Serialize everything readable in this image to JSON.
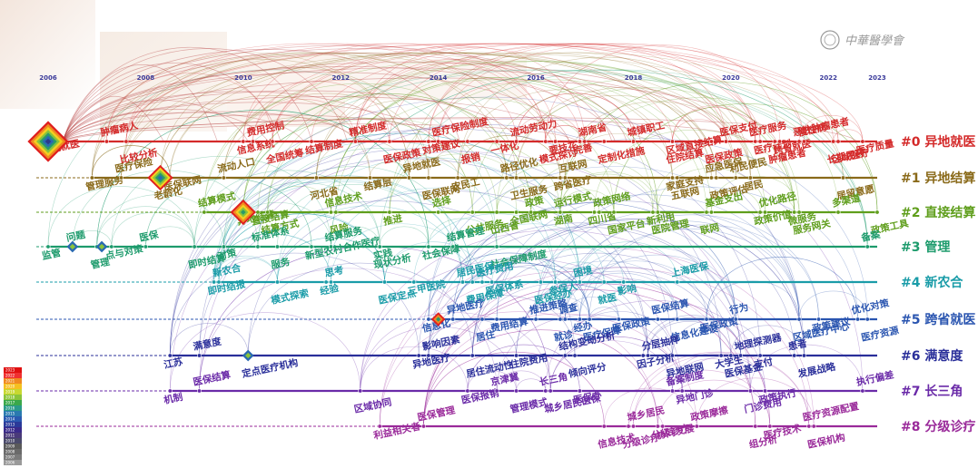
{
  "chart_data": {
    "type": "timeline",
    "years": [
      "2006",
      "2008",
      "2010",
      "2012",
      "2014",
      "2016",
      "2018",
      "2020",
      "2022",
      "2023"
    ],
    "year_range": [
      2006,
      2023
    ],
    "clusters": [
      {
        "id": "0",
        "label": "#0 异地就医",
        "color": "#d42a2a",
        "keywords": [
          {
            "text": "异地就医",
            "year": 2006
          },
          {
            "text": "肿瘤病人",
            "year": 2007.2
          },
          {
            "text": "比较分析",
            "year": 2007.6
          },
          {
            "text": "信息系统",
            "year": 2010
          },
          {
            "text": "费用控制",
            "year": 2010.2
          },
          {
            "text": "全国统筹",
            "year": 2010.6
          },
          {
            "text": "结算制度",
            "year": 2011.4
          },
          {
            "text": "精准制度",
            "year": 2012.3
          },
          {
            "text": "医保政策",
            "year": 2013
          },
          {
            "text": "对策建议",
            "year": 2013.8
          },
          {
            "text": "医疗保险制度",
            "year": 2014
          },
          {
            "text": "报销",
            "year": 2014.6
          },
          {
            "text": "一体化",
            "year": 2015.2
          },
          {
            "text": "流动劳动力",
            "year": 2015.6
          },
          {
            "text": "模式探讨",
            "year": 2016.2
          },
          {
            "text": "要技花",
            "year": 2016.4
          },
          {
            "text": "湖南省",
            "year": 2017
          },
          {
            "text": "定制化措施",
            "year": 2017.4
          },
          {
            "text": "完善",
            "year": 2016.9
          },
          {
            "text": "城镇职工",
            "year": 2018
          },
          {
            "text": "住院结算",
            "year": 2018.8
          },
          {
            "text": "区域直接结算",
            "year": 2018.8
          },
          {
            "text": "医保支付",
            "year": 2019.9
          },
          {
            "text": "医保政策",
            "year": 2019.6
          },
          {
            "text": "医疗计划",
            "year": 2020.6
          },
          {
            "text": "医疗服务",
            "year": 2020.5
          },
          {
            "text": "肿瘤患者",
            "year": 2020.9
          },
          {
            "text": "跨省就医",
            "year": 2021
          },
          {
            "text": "恶性肿瘤患者",
            "year": 2021.4
          },
          {
            "text": "区域医疗",
            "year": 2022.2
          },
          {
            "text": "医疗质量",
            "year": 2022.7
          },
          {
            "text": "慢性病",
            "year": 2021.5
          },
          {
            "text": "长期用药",
            "year": 2022.1
          }
        ]
      },
      {
        "id": "1",
        "label": "#1 异地结算",
        "color": "#8a6a1a",
        "keywords": [
          {
            "text": "管理服务",
            "year": 2006.9
          },
          {
            "text": "医疗保险",
            "year": 2007.5
          },
          {
            "text": "老龄化",
            "year": 2008.3
          },
          {
            "text": "医保联网",
            "year": 2008.5
          },
          {
            "text": "流动人口",
            "year": 2009.6
          },
          {
            "text": "河北省",
            "year": 2011.5
          },
          {
            "text": "结算层",
            "year": 2012.6
          },
          {
            "text": "异地就医",
            "year": 2013.4
          },
          {
            "text": "医保联网",
            "year": 2013.8
          },
          {
            "text": "农民工",
            "year": 2014.4
          },
          {
            "text": "路径优化",
            "year": 2015.4
          },
          {
            "text": "卫生服务",
            "year": 2015.6
          },
          {
            "text": "跨省医疗",
            "year": 2016.5
          },
          {
            "text": "互联网",
            "year": 2016.6
          },
          {
            "text": "五联网",
            "year": 2018.9
          },
          {
            "text": "家庭支持",
            "year": 2018.8
          },
          {
            "text": "应急医保",
            "year": 2019.6
          },
          {
            "text": "政策评估",
            "year": 2019.7
          },
          {
            "text": "居民",
            "year": 2020.4
          },
          {
            "text": "利民便民",
            "year": 2020.1
          },
          {
            "text": "居留意愿",
            "year": 2022.3
          }
        ]
      },
      {
        "id": "2",
        "label": "#2 直接结算",
        "color": "#5f9e1c",
        "keywords": [
          {
            "text": "异地结算",
            "year": 2010
          },
          {
            "text": "结算模式",
            "year": 2009.2
          },
          {
            "text": "结算方式",
            "year": 2010.5
          },
          {
            "text": "直接结算",
            "year": 2010.3
          },
          {
            "text": "信息技术",
            "year": 2011.8
          },
          {
            "text": "风险",
            "year": 2011.9
          },
          {
            "text": "推进",
            "year": 2013
          },
          {
            "text": "选择",
            "year": 2014
          },
          {
            "text": "公共服务",
            "year": 2014.7
          },
          {
            "text": "全国联网",
            "year": 2015.6
          },
          {
            "text": "政策",
            "year": 2015.9
          },
          {
            "text": "山西省",
            "year": 2015.2
          },
          {
            "text": "湖南",
            "year": 2016.5
          },
          {
            "text": "运行模式",
            "year": 2016.5
          },
          {
            "text": "国家平台",
            "year": 2017.6
          },
          {
            "text": "四川省",
            "year": 2017.2
          },
          {
            "text": "政策网络",
            "year": 2017.3
          },
          {
            "text": "医院管理",
            "year": 2018.5
          },
          {
            "text": "新利用",
            "year": 2018.4
          },
          {
            "text": "基金支出",
            "year": 2019.6
          },
          {
            "text": "联网",
            "year": 2019.5
          },
          {
            "text": "政策价值",
            "year": 2020.6
          },
          {
            "text": "优化路径",
            "year": 2020.7
          },
          {
            "text": "服务网关",
            "year": 2021.4
          },
          {
            "text": "微服务",
            "year": 2021.3
          },
          {
            "text": "多渠道",
            "year": 2022.2
          },
          {
            "text": "政策工具",
            "year": 2023
          }
        ]
      },
      {
        "id": "3",
        "label": "#3 管理",
        "color": "#1d9b6c",
        "keywords": [
          {
            "text": "监管",
            "year": 2006
          },
          {
            "text": "问题",
            "year": 2006.5
          },
          {
            "text": "管理",
            "year": 2007
          },
          {
            "text": "点与对策",
            "year": 2007.3
          },
          {
            "text": "医保",
            "year": 2008
          },
          {
            "text": "即时结算",
            "year": 2009
          },
          {
            "text": "对策",
            "year": 2009.6
          },
          {
            "text": "标准体系",
            "year": 2010.3
          },
          {
            "text": "服务",
            "year": 2010.7
          },
          {
            "text": "新型农村合作医疗",
            "year": 2011.4
          },
          {
            "text": "结算服务",
            "year": 2011.8
          },
          {
            "text": "现状分析",
            "year": 2012.8
          },
          {
            "text": "社会保障",
            "year": 2013.8
          },
          {
            "text": "结算管理",
            "year": 2014.3
          },
          {
            "text": "社会保障制度",
            "year": 2015.2
          },
          {
            "text": "实践",
            "year": 2012.8
          },
          {
            "text": "备案",
            "year": 2022.8
          }
        ]
      },
      {
        "id": "4",
        "label": "#4 新农合",
        "color": "#1a9ca8",
        "keywords": [
          {
            "text": "即时结报",
            "year": 2009.4
          },
          {
            "text": "新农合",
            "year": 2009.5
          },
          {
            "text": "模式探索",
            "year": 2010.7
          },
          {
            "text": "经验",
            "year": 2011.7
          },
          {
            "text": "思考",
            "year": 2011.8
          },
          {
            "text": "医保定点",
            "year": 2012.9
          },
          {
            "text": "三甲医院",
            "year": 2013.5
          },
          {
            "text": "居民医保",
            "year": 2014.5
          },
          {
            "text": "费用保障",
            "year": 2014.7
          },
          {
            "text": "参保人",
            "year": 2016.4
          },
          {
            "text": "困境",
            "year": 2016.9
          },
          {
            "text": "就医",
            "year": 2017.4
          },
          {
            "text": "影响",
            "year": 2017.8
          },
          {
            "text": "上海医保",
            "year": 2018.9
          },
          {
            "text": "医保经办",
            "year": 2016.1
          },
          {
            "text": "医保体系",
            "year": 2015.1
          },
          {
            "text": "医疗费用",
            "year": 2014.9
          }
        ]
      },
      {
        "id": "5",
        "label": "#5 跨省就医",
        "color": "#2a55b0",
        "keywords": [
          {
            "text": "信息化",
            "year": 2013.8
          },
          {
            "text": "异地医疗",
            "year": 2014.3
          },
          {
            "text": "居住",
            "year": 2014.9
          },
          {
            "text": "费用结算",
            "year": 2015.2
          },
          {
            "text": "推进策略",
            "year": 2016
          },
          {
            "text": "就诊",
            "year": 2016.5
          },
          {
            "text": "经办",
            "year": 2016.9
          },
          {
            "text": "调查",
            "year": 2016.6
          },
          {
            "text": "医疗保障",
            "year": 2017.1
          },
          {
            "text": "医保政策",
            "year": 2017.7
          },
          {
            "text": "医保结算",
            "year": 2018.5
          },
          {
            "text": "信息化建设",
            "year": 2018.9
          },
          {
            "text": "医保政策",
            "year": 2019.5
          },
          {
            "text": "行为",
            "year": 2020.1
          },
          {
            "text": "区域医疗中心",
            "year": 2021.4
          },
          {
            "text": "政策建议",
            "year": 2021.8
          },
          {
            "text": "优化对策",
            "year": 2022.6
          },
          {
            "text": "医疗资源",
            "year": 2022.8
          }
        ]
      },
      {
        "id": "6",
        "label": "#6 满意度",
        "color": "#2a2f9a",
        "keywords": [
          {
            "text": "江苏",
            "year": 2008.5
          },
          {
            "text": "满意度",
            "year": 2009.1
          },
          {
            "text": "定点医疗机构",
            "year": 2010.1
          },
          {
            "text": "异地医疗",
            "year": 2013.6
          },
          {
            "text": "影响因素",
            "year": 2013.8
          },
          {
            "text": "居住流动性",
            "year": 2014.7
          },
          {
            "text": "住院费用",
            "year": 2015.6
          },
          {
            "text": "结构变动分析",
            "year": 2016.6
          },
          {
            "text": "倾向评分",
            "year": 2016.8
          },
          {
            "text": "因子分析",
            "year": 2018.2
          },
          {
            "text": "分层抽样",
            "year": 2018.3
          },
          {
            "text": "异地联网",
            "year": 2018.8
          },
          {
            "text": "大学生",
            "year": 2019.8
          },
          {
            "text": "地理探测器",
            "year": 2020.2
          },
          {
            "text": "医保基金",
            "year": 2020
          },
          {
            "text": "支付",
            "year": 2020.6
          },
          {
            "text": "患者",
            "year": 2021.3
          },
          {
            "text": "发展战略",
            "year": 2021.5
          }
        ]
      },
      {
        "id": "7",
        "label": "#7 长三角",
        "color": "#6a2aa8",
        "keywords": [
          {
            "text": "机制",
            "year": 2008.5
          },
          {
            "text": "医保结算",
            "year": 2009.1
          },
          {
            "text": "区域协同",
            "year": 2012.4
          },
          {
            "text": "医保报销",
            "year": 2014.6
          },
          {
            "text": "京津冀",
            "year": 2015.2
          },
          {
            "text": "管理模式",
            "year": 2015.6
          },
          {
            "text": "医保办",
            "year": 2016.9
          },
          {
            "text": "长三角",
            "year": 2016.2
          },
          {
            "text": "城乡居民医保",
            "year": 2016.3
          },
          {
            "text": "异地门诊",
            "year": 2019
          },
          {
            "text": "备案制度",
            "year": 2018.8
          },
          {
            "text": "门诊费用",
            "year": 2020.4
          },
          {
            "text": "政策执行",
            "year": 2020.7
          },
          {
            "text": "执行偏差",
            "year": 2022.7
          }
        ]
      },
      {
        "id": "8",
        "label": "#8 分级诊疗",
        "color": "#9a2a9a",
        "keywords": [
          {
            "text": "利益相关者",
            "year": 2012.8
          },
          {
            "text": "医保管理",
            "year": 2013.7
          },
          {
            "text": "信息技术",
            "year": 2017.4
          },
          {
            "text": "分级诊疗",
            "year": 2018.5
          },
          {
            "text": "城乡居民",
            "year": 2018
          },
          {
            "text": "分级诊疗",
            "year": 2017.9
          },
          {
            "text": "协同发展",
            "year": 2018.6
          },
          {
            "text": "政策摩擦",
            "year": 2019.3
          },
          {
            "text": "组分析",
            "year": 2020.5
          },
          {
            "text": "医疗技术",
            "year": 2020.8
          },
          {
            "text": "医疗资源配置",
            "year": 2021.6
          },
          {
            "text": "医保机构",
            "year": 2021.7
          }
        ]
      }
    ]
  },
  "legend": {
    "years": [
      "2023",
      "2022",
      "2021",
      "2020",
      "2019",
      "2018",
      "2017",
      "2016",
      "2015",
      "2014",
      "2013",
      "2012",
      "2011",
      "2010",
      "2009",
      "2008",
      "2007",
      "2006"
    ]
  },
  "colors": {
    "0": "#d42a2a",
    "1": "#8a6a1a",
    "2": "#5f9e1c",
    "3": "#1d9b6c",
    "4": "#1a9ca8",
    "5": "#2a55b0",
    "6": "#2a2f9a",
    "7": "#6a2aa8",
    "8": "#9a2a9a"
  },
  "watermark": {
    "text": "中華醫學會",
    "icon": "seal-icon"
  }
}
